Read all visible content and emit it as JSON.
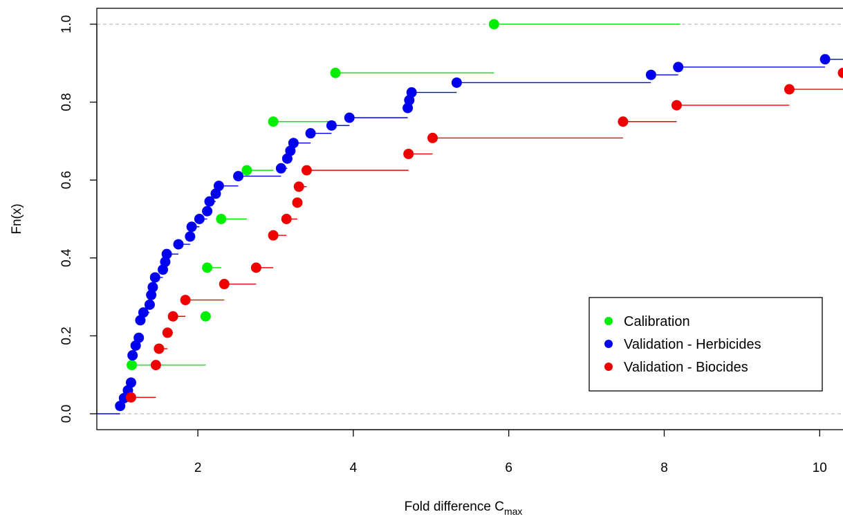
{
  "chart_data": {
    "type": "scatter",
    "subtype": "step-ecdf",
    "title": "",
    "xlabel": "Fold difference C",
    "xlabel_subscript": "max",
    "ylabel": "Fn(x)",
    "xlim": [
      0.7,
      10.3
    ],
    "ylim": [
      0.0,
      1.0
    ],
    "x_ticks": [
      2,
      4,
      6,
      8,
      10
    ],
    "y_ticks": [
      0.0,
      0.2,
      0.4,
      0.6,
      0.8,
      1.0
    ],
    "y_tick_labels": [
      "0.0",
      "0.2",
      "0.4",
      "0.6",
      "0.8",
      "1.0"
    ],
    "reference_lines": [
      0.0,
      1.0
    ],
    "legend_position": "bottom-right",
    "series": [
      {
        "name": "Calibration",
        "color": "#00ee00",
        "x": [
          1.15,
          2.1,
          2.12,
          2.3,
          2.63,
          2.97,
          3.77,
          5.81
        ],
        "y": [
          0.125,
          0.25,
          0.375,
          0.5,
          0.625,
          0.75,
          0.875,
          1.0
        ]
      },
      {
        "name": "Validation - Herbicides",
        "color": "#0000ee",
        "x": [
          1.0,
          1.05,
          1.1,
          1.14,
          1.16,
          1.2,
          1.24,
          1.26,
          1.3,
          1.38,
          1.4,
          1.42,
          1.45,
          1.55,
          1.58,
          1.6,
          1.75,
          1.9,
          1.92,
          2.02,
          2.12,
          2.15,
          2.23,
          2.27,
          2.52,
          3.07,
          3.15,
          3.19,
          3.23,
          3.45,
          3.72,
          3.95,
          4.7,
          4.72,
          4.75,
          5.33,
          7.83,
          8.18,
          10.07
        ],
        "y": [
          0.02,
          0.04,
          0.06,
          0.08,
          0.15,
          0.175,
          0.195,
          0.24,
          0.26,
          0.28,
          0.305,
          0.325,
          0.35,
          0.37,
          0.39,
          0.41,
          0.435,
          0.455,
          0.48,
          0.5,
          0.52,
          0.545,
          0.565,
          0.585,
          0.61,
          0.63,
          0.655,
          0.675,
          0.695,
          0.72,
          0.74,
          0.76,
          0.785,
          0.805,
          0.825,
          0.85,
          0.87,
          0.89,
          0.91
        ]
      },
      {
        "name": "Validation - Biocides",
        "color": "#ee0000",
        "x": [
          1.14,
          1.46,
          1.5,
          1.61,
          1.68,
          1.84,
          2.34,
          2.75,
          2.97,
          3.14,
          3.28,
          3.3,
          3.4,
          4.71,
          5.02,
          7.47,
          8.16,
          9.61,
          10.3
        ],
        "y": [
          0.042,
          0.125,
          0.167,
          0.208,
          0.25,
          0.292,
          0.333,
          0.375,
          0.458,
          0.5,
          0.542,
          0.583,
          0.625,
          0.667,
          0.708,
          0.75,
          0.792,
          0.833,
          0.875
        ]
      }
    ]
  }
}
